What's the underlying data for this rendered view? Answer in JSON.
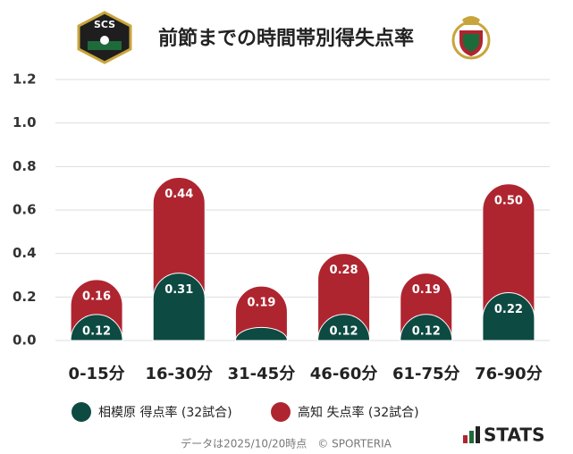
{
  "chart_data": {
    "type": "stacked_bar",
    "title": "前節までの時間帯別得失点率",
    "categories": [
      "0-15分",
      "16-30分",
      "31-45分",
      "46-60分",
      "61-75分",
      "76-90分"
    ],
    "series": [
      {
        "name": "相模原 得点率 (32試合)",
        "color": "#0d4a42",
        "values": [
          0.12,
          0.31,
          0.06,
          0.12,
          0.12,
          0.22
        ],
        "value_labels": [
          "0.12",
          "0.31",
          null,
          "0.12",
          "0.12",
          "0.22"
        ]
      },
      {
        "name": "高知 失点率 (32試合)",
        "color": "#ae2530",
        "values": [
          0.16,
          0.44,
          0.19,
          0.28,
          0.19,
          0.5
        ],
        "value_labels": [
          "0.16",
          "0.44",
          "0.19",
          "0.28",
          "0.19",
          "0.50"
        ]
      }
    ],
    "ylim": [
      0,
      1.2
    ],
    "yticks": [
      {
        "value": 0,
        "label": "0.0"
      },
      0.2,
      0.4,
      0.6,
      0.8,
      {
        "value": 1,
        "label": "1.0"
      },
      1.2
    ],
    "grid": true
  },
  "logo_text": "SCS",
  "footer": {
    "note": "データは2025/10/20時点　© SPORTERIA",
    "brand": "STATS"
  }
}
